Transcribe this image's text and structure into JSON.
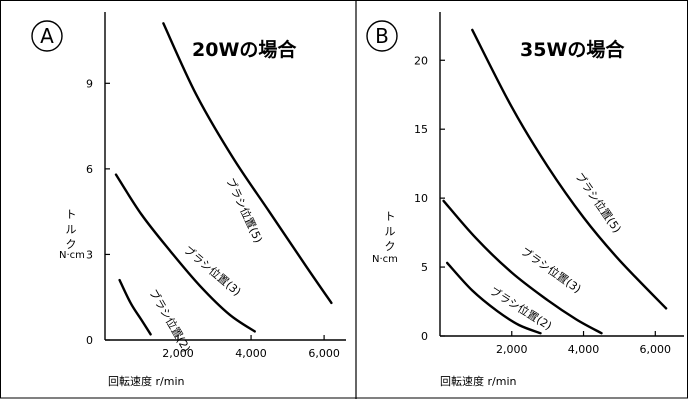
{
  "chart_data": [
    {
      "type": "line",
      "panel_label": "A",
      "title": "20Wの場合",
      "ylabel_lines": [
        "ト",
        "ル",
        "ク"
      ],
      "yunit": "N·cm",
      "xlabel": "回転速度 r/min",
      "xlim": [
        0,
        6600
      ],
      "ylim": [
        0,
        11.5
      ],
      "xticks": [
        2000,
        4000,
        6000
      ],
      "xtick_labels": [
        "2,000",
        "4,000",
        "6,000"
      ],
      "yticks": [
        0,
        3,
        6,
        9
      ],
      "ytick_labels": [
        "0",
        "3",
        "6",
        "9"
      ],
      "series": [
        {
          "name": "ブラシ位置(5)",
          "x": [
            1600,
            2500,
            3500,
            4500,
            5500,
            6200
          ],
          "y": [
            11.1,
            8.6,
            6.4,
            4.5,
            2.6,
            1.3
          ]
        },
        {
          "name": "ブラシ位置(3)",
          "x": [
            300,
            1000,
            1800,
            2600,
            3400,
            4100
          ],
          "y": [
            5.8,
            4.4,
            3.1,
            1.9,
            0.9,
            0.3
          ]
        },
        {
          "name": "ブラシ位置(2)",
          "x": [
            400,
            700,
            1000,
            1250
          ],
          "y": [
            2.1,
            1.3,
            0.7,
            0.2
          ]
        }
      ]
    },
    {
      "type": "line",
      "panel_label": "B",
      "title": "35Wの場合",
      "ylabel_lines": [
        "ト",
        "ル",
        "ク"
      ],
      "yunit": "N·cm",
      "xlabel": "回転速度 r/min",
      "xlim": [
        0,
        6800
      ],
      "ylim": [
        0,
        23.5
      ],
      "xticks": [
        2000,
        4000,
        6000
      ],
      "xtick_labels": [
        "2,000",
        "4,000",
        "6,000"
      ],
      "yticks": [
        0,
        5,
        10,
        15,
        20
      ],
      "ytick_labels": [
        "0",
        "5",
        "10",
        "15",
        "20"
      ],
      "series": [
        {
          "name": "ブラシ位置(5)",
          "x": [
            900,
            2000,
            3000,
            4000,
            5000,
            6300
          ],
          "y": [
            22.2,
            16.6,
            12.3,
            8.6,
            5.5,
            2.0
          ]
        },
        {
          "name": "ブラシ位置(3)",
          "x": [
            100,
            1000,
            2000,
            3000,
            3800,
            4500
          ],
          "y": [
            9.8,
            7.1,
            4.6,
            2.6,
            1.2,
            0.2
          ]
        },
        {
          "name": "ブラシ位置(2)",
          "x": [
            200,
            900,
            1600,
            2200,
            2800
          ],
          "y": [
            5.3,
            3.3,
            1.8,
            0.8,
            0.2
          ]
        }
      ]
    }
  ]
}
